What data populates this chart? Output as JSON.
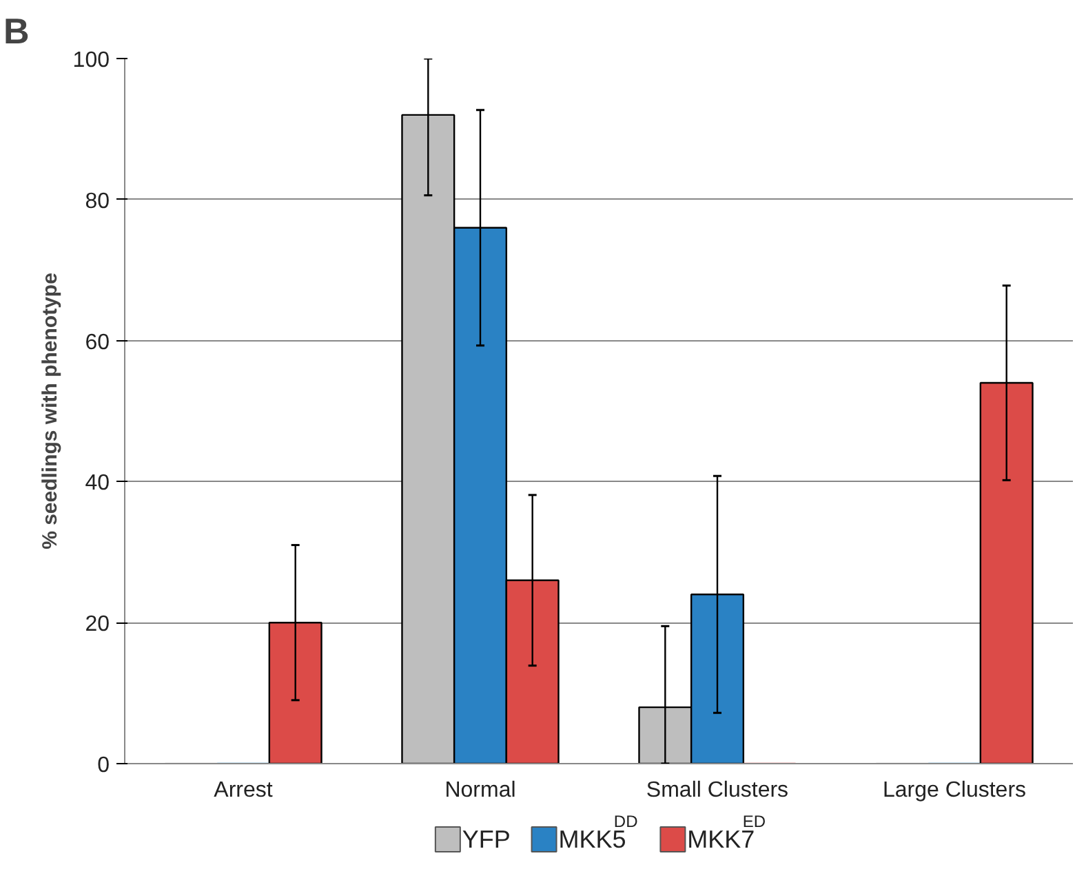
{
  "chart_data": {
    "type": "bar",
    "ylabel": "% seedlings with phenotype",
    "annotations": [
      "B"
    ],
    "categories": [
      "Arrest",
      "Normal",
      "Small Clusters",
      "Large Clusters"
    ],
    "series": [
      {
        "name": "YFP",
        "color": "#bebebe",
        "values": [
          0,
          92,
          8,
          0
        ],
        "errors": [
          null,
          [
            80.6,
            100
          ],
          [
            0,
            19.5
          ],
          null
        ]
      },
      {
        "name": "MKK5$^{DD}$",
        "color": "#2a82c4",
        "values": [
          0,
          76,
          24,
          0
        ],
        "errors": [
          null,
          [
            59.3,
            92.7
          ],
          [
            7.2,
            40.8
          ],
          null
        ]
      },
      {
        "name": "MKK7$^{ED}$",
        "color": "#dc4b48",
        "values": [
          20,
          26,
          0,
          54
        ],
        "errors": [
          [
            9,
            31
          ],
          [
            13.9,
            38.1
          ],
          null,
          [
            40.2,
            67.8
          ]
        ]
      }
    ],
    "ylim": [
      0,
      100
    ],
    "yticks": [
      0,
      20,
      40,
      60,
      80,
      100
    ],
    "grid": "y",
    "legend": "bottom"
  }
}
